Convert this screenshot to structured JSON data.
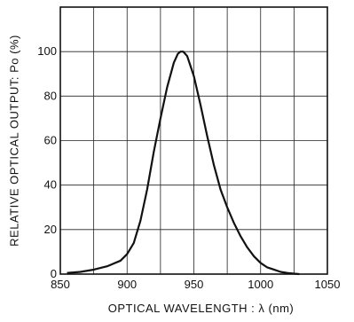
{
  "chart_data": {
    "type": "line",
    "xlabel": "OPTICAL WAVELENGTH : λ  (nm)",
    "ylabel": "RELATIVE OPTICAL OUTPUT: Po  (%)",
    "xlim": [
      850,
      1050
    ],
    "ylim": [
      0,
      120
    ],
    "x_ticks": [
      850,
      900,
      950,
      1000,
      1050
    ],
    "y_ticks": [
      0,
      20,
      40,
      60,
      80,
      100
    ],
    "grid": true,
    "series": [
      {
        "x": [
          855,
          865,
          875,
          885,
          895,
          900,
          905,
          910,
          915,
          920,
          925,
          930,
          935,
          938,
          940,
          942,
          945,
          950,
          955,
          960,
          965,
          970,
          975,
          980,
          985,
          990,
          995,
          1000,
          1005,
          1010,
          1015,
          1020,
          1025,
          1029
        ],
        "y": [
          0.5,
          1,
          2,
          3.5,
          6,
          9,
          14,
          24,
          38,
          55,
          70,
          84,
          95,
          99,
          100,
          100,
          98,
          89,
          76,
          62,
          49,
          38,
          30,
          23,
          17,
          12,
          8,
          5,
          3,
          2,
          1,
          0.5,
          0.2,
          0
        ]
      }
    ]
  }
}
